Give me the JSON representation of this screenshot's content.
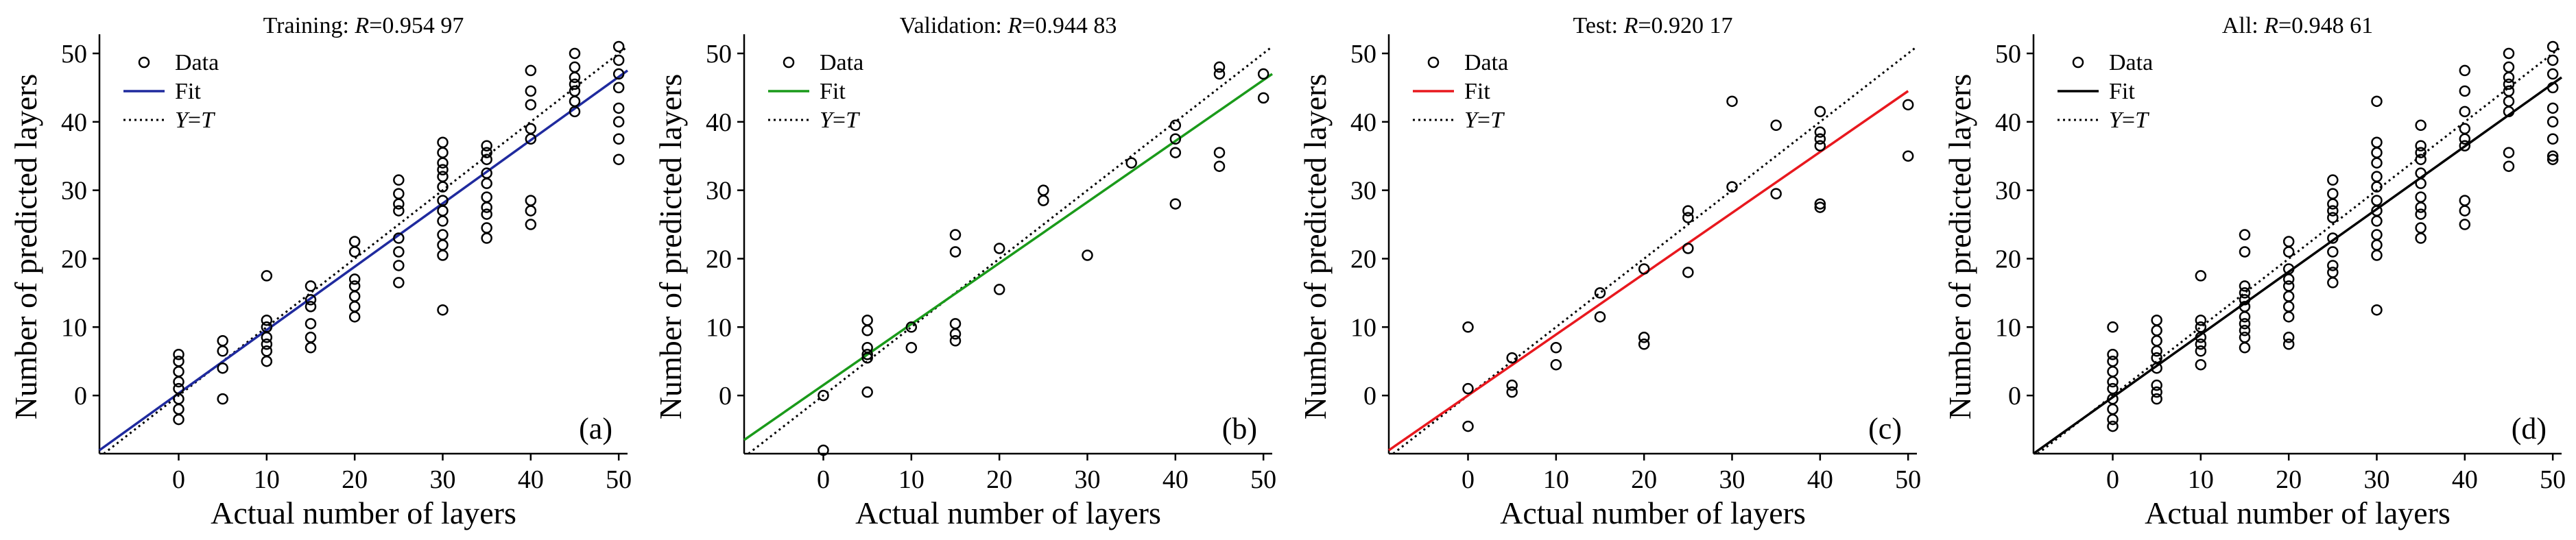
{
  "colors": {
    "axis": "#000000",
    "marker": "#000000",
    "ideal": "#000000"
  },
  "chart_data": [
    {
      "type": "scatter",
      "title_prefix": "Training: ",
      "r_symbol": "R",
      "r_value": "=0.954 97",
      "panel_label": "(a)",
      "xlabel": "Actual number of layers",
      "ylabel": "Number of predicted layers",
      "xlim": [
        -9,
        51
      ],
      "ylim": [
        -8.5,
        52
      ],
      "xticks": [
        "0",
        "10",
        "20",
        "30",
        "40",
        "50"
      ],
      "yticks": [
        "0",
        "10",
        "20",
        "30",
        "40",
        "50"
      ],
      "legend": {
        "data": "Data",
        "fit": "Fit",
        "ideal_a": "Y",
        "ideal_eq": "=",
        "ideal_b": "T"
      },
      "fit_color": "#1f2a9e",
      "fit_line": [
        [
          -9,
          -8.0
        ],
        [
          51,
          47.5
        ]
      ],
      "grid": false,
      "points": [
        [
          0,
          -3.5
        ],
        [
          0,
          -2
        ],
        [
          0,
          -0.5
        ],
        [
          0,
          1
        ],
        [
          0,
          2
        ],
        [
          0,
          3.5
        ],
        [
          0,
          5
        ],
        [
          0,
          6
        ],
        [
          5,
          -0.5
        ],
        [
          5,
          4
        ],
        [
          5,
          6.5
        ],
        [
          5,
          8
        ],
        [
          10,
          5
        ],
        [
          10,
          6.5
        ],
        [
          10,
          7.5
        ],
        [
          10,
          8.5
        ],
        [
          10,
          10
        ],
        [
          10,
          11
        ],
        [
          10,
          17.5
        ],
        [
          15,
          7
        ],
        [
          15,
          8.5
        ],
        [
          15,
          10.5
        ],
        [
          15,
          13
        ],
        [
          15,
          14
        ],
        [
          15,
          16
        ],
        [
          20,
          11.5
        ],
        [
          20,
          13
        ],
        [
          20,
          14.5
        ],
        [
          20,
          16
        ],
        [
          20,
          17
        ],
        [
          20,
          21
        ],
        [
          20,
          22.5
        ],
        [
          25,
          16.5
        ],
        [
          25,
          19
        ],
        [
          25,
          21
        ],
        [
          25,
          23
        ],
        [
          25,
          27
        ],
        [
          25,
          28
        ],
        [
          25,
          29.5
        ],
        [
          25,
          31.5
        ],
        [
          30,
          12.5
        ],
        [
          30,
          20.5
        ],
        [
          30,
          22
        ],
        [
          30,
          23.5
        ],
        [
          30,
          25.5
        ],
        [
          30,
          27
        ],
        [
          30,
          28.5
        ],
        [
          30,
          30.5
        ],
        [
          30,
          32
        ],
        [
          30,
          33
        ],
        [
          30,
          34
        ],
        [
          30,
          35.5
        ],
        [
          30,
          37
        ],
        [
          35,
          23
        ],
        [
          35,
          24.5
        ],
        [
          35,
          26.5
        ],
        [
          35,
          27.5
        ],
        [
          35,
          29
        ],
        [
          35,
          31
        ],
        [
          35,
          32.5
        ],
        [
          35,
          34.5
        ],
        [
          35,
          35.5
        ],
        [
          35,
          36.5
        ],
        [
          40,
          25
        ],
        [
          40,
          27
        ],
        [
          40,
          28.5
        ],
        [
          40,
          37.5
        ],
        [
          40,
          39
        ],
        [
          40,
          42.5
        ],
        [
          40,
          44.5
        ],
        [
          40,
          47.5
        ],
        [
          45,
          41.5
        ],
        [
          45,
          43
        ],
        [
          45,
          44.5
        ],
        [
          45,
          45.5
        ],
        [
          45,
          46.5
        ],
        [
          45,
          48
        ],
        [
          45,
          50
        ],
        [
          50,
          34.5
        ],
        [
          50,
          37.5
        ],
        [
          50,
          40
        ],
        [
          50,
          42
        ],
        [
          50,
          45
        ],
        [
          50,
          47
        ],
        [
          50,
          49
        ],
        [
          50,
          51
        ]
      ]
    },
    {
      "type": "scatter",
      "title_prefix": "Validation: ",
      "r_symbol": "R",
      "r_value": "=0.944 83",
      "panel_label": "(b)",
      "xlabel": "Actual number of layers",
      "ylabel": "Number of predicted layers",
      "xlim": [
        -9,
        51
      ],
      "ylim": [
        -8.5,
        52
      ],
      "xticks": [
        "0",
        "10",
        "20",
        "30",
        "40",
        "50"
      ],
      "yticks": [
        "0",
        "10",
        "20",
        "30",
        "40",
        "50"
      ],
      "legend": {
        "data": "Data",
        "fit": "Fit",
        "ideal_a": "Y",
        "ideal_eq": "=",
        "ideal_b": "T"
      },
      "fit_color": "#1a9a1a",
      "fit_line": [
        [
          -9,
          -6.5
        ],
        [
          51,
          47.0
        ]
      ],
      "grid": false,
      "points": [
        [
          0,
          -8
        ],
        [
          0,
          0
        ],
        [
          5,
          0.5
        ],
        [
          5,
          5.5
        ],
        [
          5,
          6
        ],
        [
          5,
          7
        ],
        [
          5,
          9.5
        ],
        [
          5,
          11
        ],
        [
          10,
          7
        ],
        [
          10,
          10
        ],
        [
          15,
          8
        ],
        [
          15,
          9
        ],
        [
          15,
          10.5
        ],
        [
          15,
          21
        ],
        [
          15,
          23.5
        ],
        [
          20,
          15.5
        ],
        [
          20,
          21.5
        ],
        [
          25,
          28.5
        ],
        [
          25,
          30
        ],
        [
          30,
          20.5
        ],
        [
          35,
          34
        ],
        [
          40,
          28
        ],
        [
          40,
          35.5
        ],
        [
          40,
          37.5
        ],
        [
          40,
          39.5
        ],
        [
          45,
          33.5
        ],
        [
          45,
          35.5
        ],
        [
          45,
          47
        ],
        [
          45,
          48
        ],
        [
          50,
          43.5
        ],
        [
          50,
          47
        ]
      ]
    },
    {
      "type": "scatter",
      "title_prefix": "Test: ",
      "r_symbol": "R",
      "r_value": "=0.920 17",
      "panel_label": "(c)",
      "xlabel": "Actual number of layers",
      "ylabel": "Number of predicted layers",
      "xlim": [
        -9,
        51
      ],
      "ylim": [
        -8.5,
        52
      ],
      "xticks": [
        "0",
        "10",
        "20",
        "30",
        "40",
        "50"
      ],
      "yticks": [
        "0",
        "10",
        "20",
        "30",
        "40",
        "50"
      ],
      "legend": {
        "data": "Data",
        "fit": "Fit",
        "ideal_a": "Y",
        "ideal_eq": "=",
        "ideal_b": "T"
      },
      "fit_color": "#e8181e",
      "fit_line": [
        [
          -9,
          -8.0
        ],
        [
          50,
          44.5
        ]
      ],
      "grid": false,
      "points": [
        [
          0,
          -4.5
        ],
        [
          0,
          1
        ],
        [
          0,
          10
        ],
        [
          5,
          0.5
        ],
        [
          5,
          1.5
        ],
        [
          5,
          5.5
        ],
        [
          10,
          4.5
        ],
        [
          10,
          7
        ],
        [
          15,
          11.5
        ],
        [
          15,
          15
        ],
        [
          20,
          7.5
        ],
        [
          20,
          8.5
        ],
        [
          20,
          18.5
        ],
        [
          25,
          18
        ],
        [
          25,
          21.5
        ],
        [
          25,
          26
        ],
        [
          25,
          27
        ],
        [
          30,
          30.5
        ],
        [
          30,
          43
        ],
        [
          35,
          29.5
        ],
        [
          35,
          39.5
        ],
        [
          40,
          27.5
        ],
        [
          40,
          28
        ],
        [
          40,
          36.5
        ],
        [
          40,
          37.5
        ],
        [
          40,
          38.5
        ],
        [
          40,
          41.5
        ],
        [
          50,
          35
        ],
        [
          50,
          42.5
        ]
      ]
    },
    {
      "type": "scatter",
      "title_prefix": "All: ",
      "r_symbol": "R",
      "r_value": "=0.948 61",
      "panel_label": "(d)",
      "xlabel": "Actual number of layers",
      "ylabel": "Number of predicted layers",
      "xlim": [
        -9,
        51
      ],
      "ylim": [
        -8.5,
        52
      ],
      "xticks": [
        "0",
        "10",
        "20",
        "30",
        "40",
        "50"
      ],
      "yticks": [
        "0",
        "10",
        "20",
        "30",
        "40",
        "50"
      ],
      "legend": {
        "data": "Data",
        "fit": "Fit",
        "ideal_a": "Y",
        "ideal_eq": "=",
        "ideal_b": "T"
      },
      "fit_color": "#000000",
      "fit_line": [
        [
          -9,
          -8.5
        ],
        [
          51,
          46.5
        ]
      ],
      "grid": false,
      "points": [
        [
          0,
          -4.5
        ],
        [
          0,
          -3.5
        ],
        [
          0,
          -2
        ],
        [
          0,
          -0.5
        ],
        [
          0,
          1
        ],
        [
          0,
          2
        ],
        [
          0,
          3.5
        ],
        [
          0,
          5
        ],
        [
          0,
          6
        ],
        [
          0,
          10
        ],
        [
          5,
          -0.5
        ],
        [
          5,
          0.5
        ],
        [
          5,
          1.5
        ],
        [
          5,
          4
        ],
        [
          5,
          5.5
        ],
        [
          5,
          6.5
        ],
        [
          5,
          8
        ],
        [
          5,
          9.5
        ],
        [
          5,
          11
        ],
        [
          10,
          4.5
        ],
        [
          10,
          6.5
        ],
        [
          10,
          7.5
        ],
        [
          10,
          8.5
        ],
        [
          10,
          10
        ],
        [
          10,
          11
        ],
        [
          10,
          17.5
        ],
        [
          15,
          7
        ],
        [
          15,
          8.5
        ],
        [
          15,
          9.5
        ],
        [
          15,
          10.5
        ],
        [
          15,
          11.5
        ],
        [
          15,
          13
        ],
        [
          15,
          14
        ],
        [
          15,
          15
        ],
        [
          15,
          16
        ],
        [
          15,
          21
        ],
        [
          15,
          23.5
        ],
        [
          20,
          7.5
        ],
        [
          20,
          8.5
        ],
        [
          20,
          11.5
        ],
        [
          20,
          13
        ],
        [
          20,
          14.5
        ],
        [
          20,
          16
        ],
        [
          20,
          17
        ],
        [
          20,
          18.5
        ],
        [
          20,
          21
        ],
        [
          20,
          22.5
        ],
        [
          25,
          16.5
        ],
        [
          25,
          18
        ],
        [
          25,
          19
        ],
        [
          25,
          21
        ],
        [
          25,
          23
        ],
        [
          25,
          26
        ],
        [
          25,
          27
        ],
        [
          25,
          28
        ],
        [
          25,
          29.5
        ],
        [
          25,
          31.5
        ],
        [
          30,
          12.5
        ],
        [
          30,
          20.5
        ],
        [
          30,
          22
        ],
        [
          30,
          23.5
        ],
        [
          30,
          25.5
        ],
        [
          30,
          27
        ],
        [
          30,
          28.5
        ],
        [
          30,
          30.5
        ],
        [
          30,
          32
        ],
        [
          30,
          34
        ],
        [
          30,
          35.5
        ],
        [
          30,
          37
        ],
        [
          30,
          43
        ],
        [
          35,
          23
        ],
        [
          35,
          24.5
        ],
        [
          35,
          26.5
        ],
        [
          35,
          27.5
        ],
        [
          35,
          29
        ],
        [
          35,
          31
        ],
        [
          35,
          32.5
        ],
        [
          35,
          34.5
        ],
        [
          35,
          35.5
        ],
        [
          35,
          36.5
        ],
        [
          35,
          39.5
        ],
        [
          40,
          25
        ],
        [
          40,
          27
        ],
        [
          40,
          28.5
        ],
        [
          40,
          36.5
        ],
        [
          40,
          37.5
        ],
        [
          40,
          39
        ],
        [
          40,
          41.5
        ],
        [
          40,
          44.5
        ],
        [
          40,
          47.5
        ],
        [
          45,
          33.5
        ],
        [
          45,
          35.5
        ],
        [
          45,
          41.5
        ],
        [
          45,
          43
        ],
        [
          45,
          44.5
        ],
        [
          45,
          45.5
        ],
        [
          45,
          46.5
        ],
        [
          45,
          48
        ],
        [
          45,
          50
        ],
        [
          50,
          34.5
        ],
        [
          50,
          35
        ],
        [
          50,
          37.5
        ],
        [
          50,
          40
        ],
        [
          50,
          42
        ],
        [
          50,
          45
        ],
        [
          50,
          47
        ],
        [
          50,
          49
        ],
        [
          50,
          51
        ]
      ]
    }
  ]
}
